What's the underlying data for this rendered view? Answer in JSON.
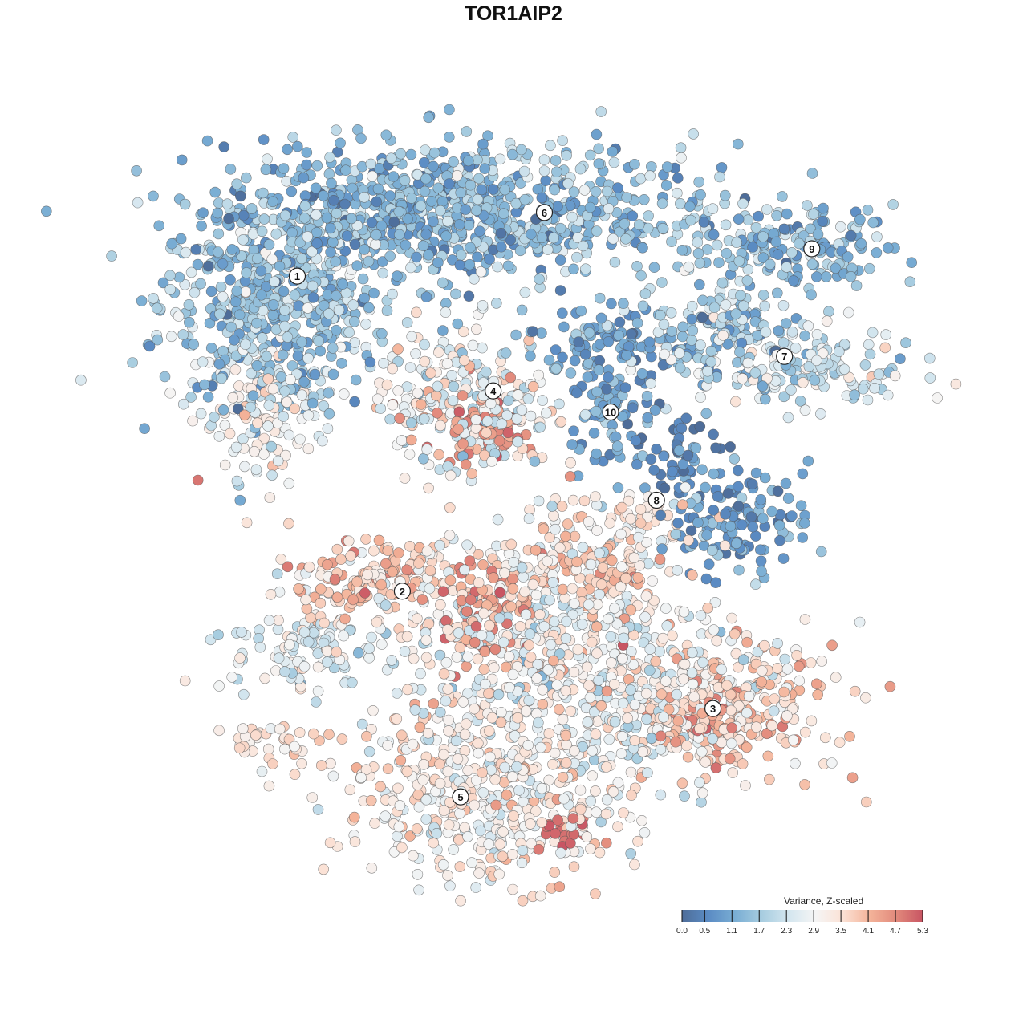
{
  "chart_data": {
    "type": "scatter",
    "title": "TOR1AIP2",
    "xlabel": "",
    "ylabel": "",
    "xlim": [
      -58.18,
      58.18
    ],
    "ylim": [
      -58.18,
      58.18
    ],
    "grid": false,
    "legend": {
      "title": "Variance, Z-scaled",
      "placement": "bottom-right",
      "ticks": [
        "0.0",
        "0.5",
        "1.1",
        "1.7",
        "2.3",
        "2.9",
        "3.5",
        "4.1",
        "4.7",
        "5.3"
      ],
      "range": [
        0,
        5.3
      ],
      "colors": [
        "#4e6d99",
        "#5b8cc4",
        "#7aaed4",
        "#a8cde0",
        "#d4e6ef",
        "#f5f5f5",
        "#fbe2d6",
        "#f4b49a",
        "#e28a7c",
        "#c85563"
      ]
    },
    "cluster_labels": [
      {
        "label": "1",
        "x": -24.5,
        "y": 26.9
      },
      {
        "label": "2",
        "x": -12.6,
        "y": -8.8
      },
      {
        "label": "3",
        "x": 22.6,
        "y": -22.1
      },
      {
        "label": "4",
        "x": -2.3,
        "y": 13.9
      },
      {
        "label": "5",
        "x": -6.0,
        "y": -32.1
      },
      {
        "label": "6",
        "x": 3.5,
        "y": 34.1
      },
      {
        "label": "7",
        "x": 30.7,
        "y": 17.8
      },
      {
        "label": "8",
        "x": 16.2,
        "y": 1.5
      },
      {
        "label": "9",
        "x": 33.8,
        "y": 30.0
      },
      {
        "label": "10",
        "x": 11.0,
        "y": 11.5
      }
    ],
    "point_groups": [
      {
        "x": -27.3,
        "y": 23.6,
        "sx": 6.4,
        "sy": 5.5,
        "n": 500,
        "mean": 1.6,
        "sd": 0.6
      },
      {
        "x": -1.8,
        "y": 33.6,
        "sx": 13.6,
        "sy": 4.1,
        "n": 600,
        "mean": 1.5,
        "sd": 0.6
      },
      {
        "x": -15.5,
        "y": 34.5,
        "sx": 9.1,
        "sy": 3.6,
        "n": 300,
        "mean": 1.2,
        "sd": 0.5
      },
      {
        "x": -28.2,
        "y": 10.9,
        "sx": 3.6,
        "sy": 3.6,
        "n": 120,
        "mean": 2.8,
        "sd": 0.6
      },
      {
        "x": -5.5,
        "y": 12.7,
        "sx": 5.0,
        "sy": 4.1,
        "n": 250,
        "mean": 2.9,
        "sd": 0.8
      },
      {
        "x": -3.2,
        "y": 9.1,
        "sx": 2.3,
        "sy": 1.8,
        "n": 60,
        "mean": 4.5,
        "sd": 0.4
      },
      {
        "x": 10.9,
        "y": 12.7,
        "sx": 2.7,
        "sy": 3.6,
        "n": 80,
        "mean": 1.0,
        "sd": 0.4
      },
      {
        "x": 16.4,
        "y": 19.1,
        "sx": 8.2,
        "sy": 1.8,
        "n": 150,
        "mean": 1.1,
        "sd": 0.6
      },
      {
        "x": 32.7,
        "y": 16.4,
        "sx": 6.4,
        "sy": 2.3,
        "n": 150,
        "mean": 2.3,
        "sd": 0.6
      },
      {
        "x": 23.6,
        "y": 21.8,
        "sx": 3.6,
        "sy": 2.3,
        "n": 80,
        "mean": 2.0,
        "sd": 0.5
      },
      {
        "x": 31.8,
        "y": 30.0,
        "sx": 5.5,
        "sy": 2.3,
        "n": 150,
        "mean": 1.3,
        "sd": 0.5
      },
      {
        "x": 25.5,
        "y": -0.5,
        "sx": 4.1,
        "sy": 2.7,
        "n": 120,
        "mean": 0.9,
        "sd": 0.5
      },
      {
        "x": 19.1,
        "y": 6.4,
        "sx": 2.7,
        "sy": 3.2,
        "n": 60,
        "mean": 0.6,
        "sd": 0.5
      },
      {
        "x": 12.7,
        "y": 0.0,
        "sx": 4.5,
        "sy": 1.4,
        "n": 50,
        "mean": 3.3,
        "sd": 0.4
      },
      {
        "x": -17.3,
        "y": -7.7,
        "sx": 5.5,
        "sy": 2.3,
        "n": 150,
        "mean": 3.8,
        "sd": 0.5
      },
      {
        "x": -23.6,
        "y": -15.5,
        "sx": 4.1,
        "sy": 2.3,
        "n": 100,
        "mean": 2.6,
        "sd": 0.5
      },
      {
        "x": 3.6,
        "y": -14.5,
        "sx": 10.0,
        "sy": 6.4,
        "n": 600,
        "mean": 2.9,
        "sd": 0.6
      },
      {
        "x": -3.6,
        "y": -10.9,
        "sx": 2.7,
        "sy": 3.2,
        "n": 80,
        "mean": 4.4,
        "sd": 0.5
      },
      {
        "x": 9.1,
        "y": -6.4,
        "sx": 4.5,
        "sy": 2.3,
        "n": 100,
        "mean": 3.8,
        "sd": 0.4
      },
      {
        "x": 23.6,
        "y": -21.8,
        "sx": 6.4,
        "sy": 3.6,
        "n": 300,
        "mean": 3.6,
        "sd": 0.5
      },
      {
        "x": 21.8,
        "y": -24.5,
        "sx": 2.7,
        "sy": 1.8,
        "n": 40,
        "mean": 4.6,
        "sd": 0.3
      },
      {
        "x": -3.6,
        "y": -31.8,
        "sx": 8.2,
        "sy": 5.0,
        "n": 450,
        "mean": 3.2,
        "sd": 0.5
      },
      {
        "x": 5.5,
        "y": -36.4,
        "sx": 1.8,
        "sy": 0.9,
        "n": 20,
        "mean": 5.0,
        "sd": 0.2
      },
      {
        "x": 14.5,
        "y": -23.6,
        "sx": 3.6,
        "sy": 4.5,
        "n": 100,
        "mean": 2.6,
        "sd": 0.5
      },
      {
        "x": -26.4,
        "y": -25.9,
        "sx": 4.1,
        "sy": 1.4,
        "n": 40,
        "mean": 3.4,
        "sd": 0.4
      }
    ]
  }
}
